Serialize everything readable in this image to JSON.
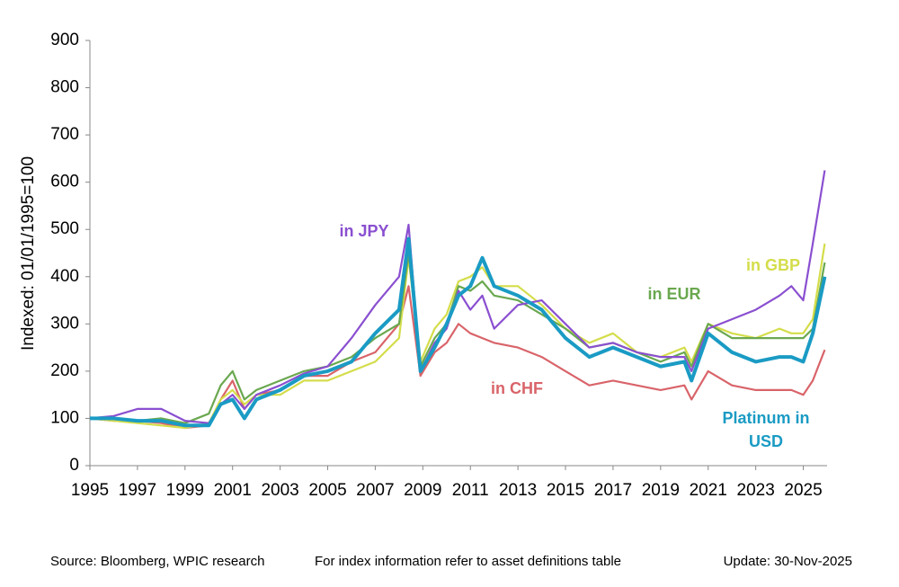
{
  "chart_data": {
    "type": "line",
    "y_label": "Indexed: 01/01/1995=100",
    "source": "Source: Bloomberg, WPIC research",
    "note": "For index information refer to asset definitions table",
    "update": "Update: 30-Nov-2025",
    "x": [
      1995,
      1996,
      1997,
      1998,
      1999,
      2000,
      2000.5,
      2001,
      2001.5,
      2002,
      2003,
      2004,
      2005,
      2006,
      2007,
      2008,
      2008.4,
      2008.9,
      2009.5,
      2010,
      2010.5,
      2011,
      2011.5,
      2012,
      2013,
      2014,
      2015,
      2016,
      2017,
      2018,
      2019,
      2020,
      2020.3,
      2021,
      2022,
      2023,
      2024,
      2024.5,
      2025,
      2025.4,
      2025.9
    ],
    "xlim": [
      1995,
      2026
    ],
    "xticks": [
      1995,
      1997,
      1999,
      2001,
      2003,
      2005,
      2007,
      2009,
      2011,
      2013,
      2015,
      2017,
      2019,
      2021,
      2023,
      2025
    ],
    "ylim": [
      0,
      900
    ],
    "yticks": [
      0,
      100,
      200,
      300,
      400,
      500,
      600,
      700,
      800,
      900
    ],
    "series": [
      {
        "name": "in CHF",
        "color": "#d9646a",
        "values": [
          100,
          95,
          95,
          90,
          80,
          85,
          140,
          180,
          120,
          150,
          160,
          190,
          190,
          220,
          240,
          300,
          380,
          190,
          240,
          260,
          300,
          280,
          270,
          260,
          250,
          230,
          200,
          170,
          180,
          170,
          160,
          170,
          140,
          200,
          170,
          160,
          160,
          160,
          150,
          180,
          245
        ]
      },
      {
        "name": "in GBP",
        "color": "#d4dd4a",
        "values": [
          100,
          95,
          90,
          85,
          80,
          90,
          140,
          160,
          130,
          150,
          150,
          180,
          180,
          200,
          220,
          270,
          440,
          220,
          290,
          320,
          390,
          400,
          420,
          380,
          380,
          340,
          290,
          260,
          280,
          240,
          230,
          250,
          220,
          300,
          280,
          270,
          290,
          280,
          280,
          310,
          470
        ]
      },
      {
        "name": "in EUR",
        "color": "#6aa84f",
        "values": [
          100,
          100,
          95,
          100,
          90,
          110,
          170,
          200,
          140,
          160,
          180,
          200,
          210,
          230,
          270,
          300,
          450,
          210,
          270,
          300,
          380,
          370,
          390,
          360,
          350,
          320,
          290,
          250,
          260,
          240,
          220,
          240,
          210,
          300,
          270,
          270,
          270,
          270,
          270,
          290,
          430
        ]
      },
      {
        "name": "in JPY",
        "color": "#8a4fd0",
        "values": [
          100,
          105,
          120,
          120,
          95,
          90,
          130,
          150,
          120,
          150,
          170,
          195,
          210,
          270,
          340,
          400,
          510,
          200,
          260,
          290,
          370,
          330,
          360,
          290,
          340,
          350,
          300,
          250,
          260,
          240,
          230,
          230,
          200,
          290,
          310,
          330,
          360,
          380,
          350,
          470,
          625
        ]
      },
      {
        "name": "Platinum in USD",
        "color": "#1a9bc4",
        "values": [
          100,
          100,
          95,
          95,
          85,
          85,
          130,
          140,
          100,
          140,
          160,
          190,
          200,
          220,
          280,
          330,
          480,
          200,
          250,
          300,
          360,
          380,
          440,
          380,
          360,
          330,
          270,
          230,
          250,
          230,
          210,
          220,
          180,
          280,
          240,
          220,
          230,
          230,
          220,
          280,
          400
        ]
      }
    ]
  }
}
